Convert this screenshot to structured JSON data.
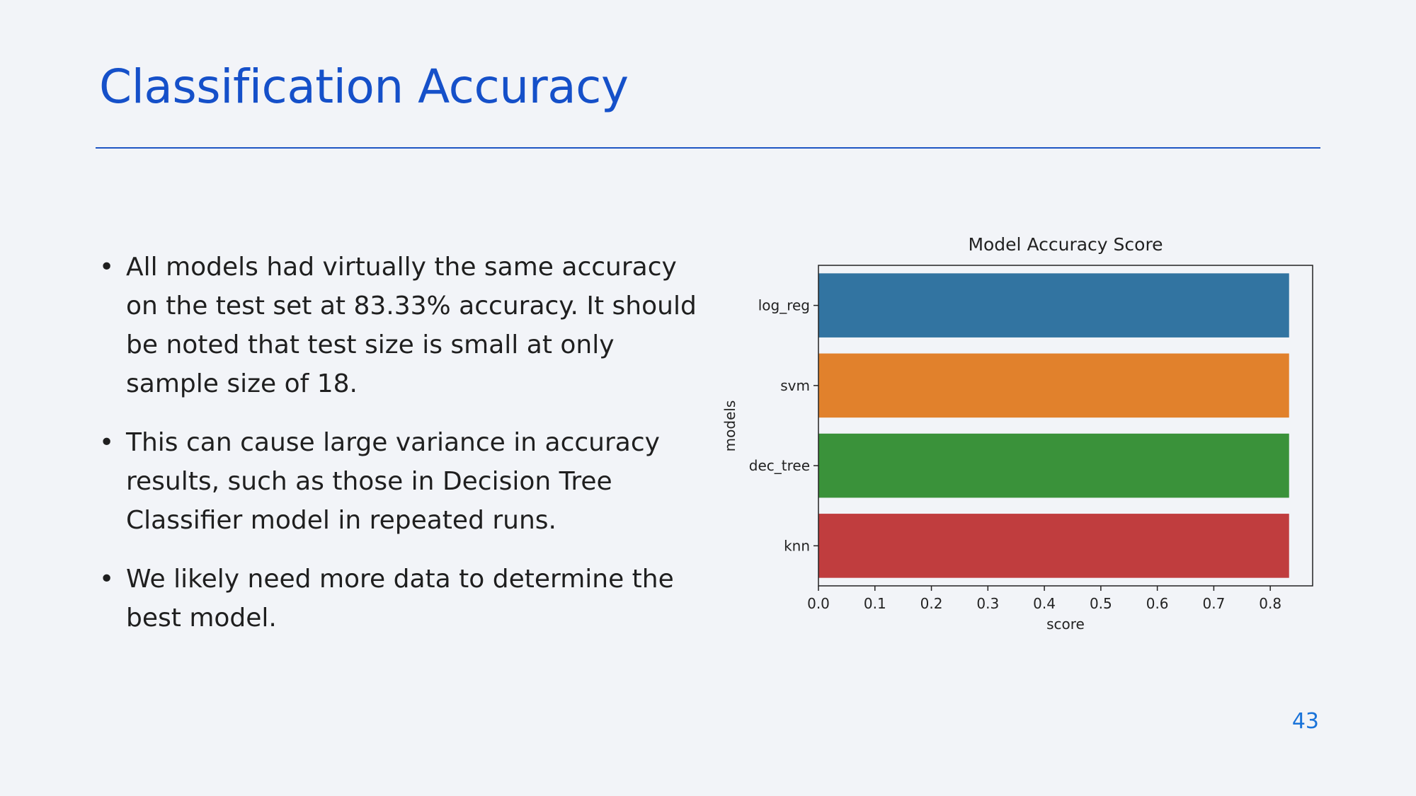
{
  "slide": {
    "title": "Classification Accuracy",
    "page_number": "43",
    "bullets": [
      "All models had virtually the same accuracy on the test set at 83.33% accuracy.  It should be noted that test size is small at only sample size of  18.",
      "This can cause large variance in accuracy results, such as those in Decision Tree Classifier model in repeated runs.",
      "We likely need more data to determine the best model."
    ]
  },
  "chart_data": {
    "type": "bar",
    "orientation": "horizontal",
    "title": "Model Accuracy Score",
    "xlabel": "score",
    "ylabel": "models",
    "categories": [
      "log_reg",
      "svm",
      "dec_tree",
      "knn"
    ],
    "values": [
      0.8333,
      0.8333,
      0.8333,
      0.8333
    ],
    "colors": [
      "#3274a1",
      "#e1812c",
      "#3a923a",
      "#c03d3e"
    ],
    "xlim": [
      0,
      0.875
    ],
    "xticks": [
      "0.0",
      "0.1",
      "0.2",
      "0.3",
      "0.4",
      "0.5",
      "0.6",
      "0.7",
      "0.8"
    ],
    "grid": false,
    "legend": "none"
  }
}
